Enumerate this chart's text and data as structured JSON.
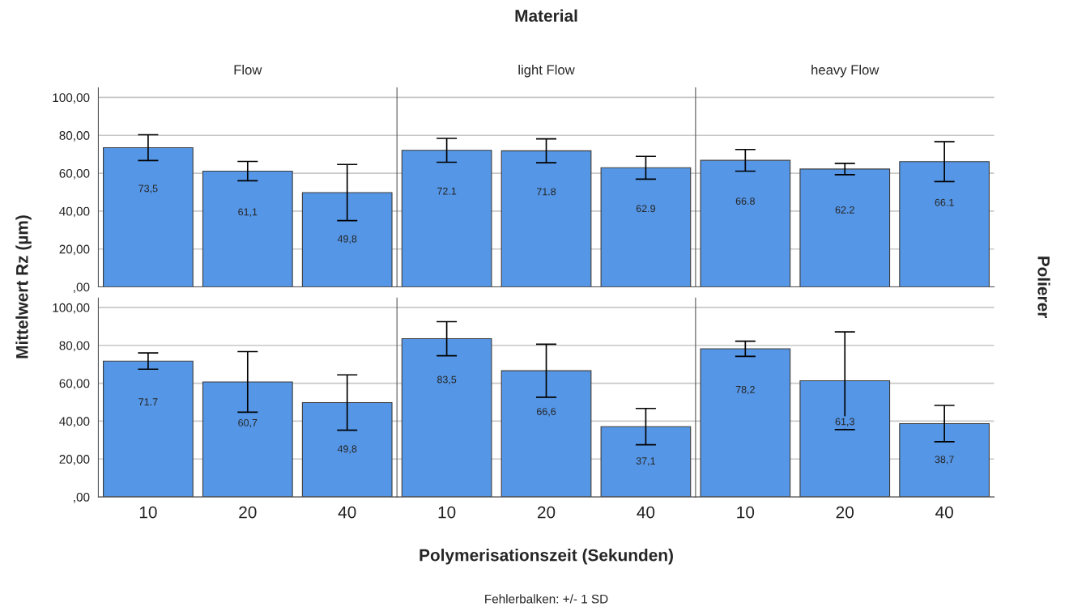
{
  "chart_data": [
    {
      "type": "bar",
      "title": "Flow",
      "ylabel": "Mittelwert Rz (µm)",
      "annotations": [
        "Material",
        "Polierer",
        "Fehlerbalken: +/- 1 SD"
      ],
      "categories": [
        "10",
        "20",
        "40"
      ],
      "color": "#5596e6",
      "values": [
        73.5,
        61.1,
        49.8
      ],
      "errors": [
        6.8,
        5.1,
        14.8
      ],
      "value_labels": [
        "73,5",
        "61,1",
        "49,8"
      ],
      "ylim": [
        0,
        105
      ],
      "yticks": [
        {
          "value": 0,
          "label": ",00"
        },
        {
          "value": 20,
          "label": "20,00"
        },
        {
          "value": 40,
          "label": "40,00"
        },
        {
          "value": 60,
          "label": "60,00"
        },
        {
          "value": 80,
          "label": "80,00"
        },
        {
          "value": 100,
          "label": "100,00"
        }
      ],
      "grid": "y",
      "tick_labels": "y"
    },
    {
      "type": "bar",
      "title": "light Flow",
      "categories": [
        "10",
        "20",
        "40"
      ],
      "color": "#5596e6",
      "values": [
        72.1,
        71.8,
        62.9
      ],
      "errors": [
        6.3,
        6.3,
        6
      ],
      "value_labels": [
        "72.1",
        "71.8",
        "62.9"
      ],
      "ylim": [
        0,
        105
      ],
      "yticks": [
        {
          "value": 0,
          "label": null
        },
        {
          "value": 20,
          "label": null
        },
        {
          "value": 40,
          "label": null
        },
        {
          "value": 60,
          "label": null
        },
        {
          "value": 80,
          "label": null
        },
        {
          "value": 100,
          "label": null
        }
      ],
      "grid": "y",
      "tick_labels": false
    },
    {
      "type": "bar",
      "title": "heavy Flow",
      "categories": [
        "10",
        "20",
        "40"
      ],
      "color": "#5596e6",
      "values": [
        66.8,
        62.2,
        66.1
      ],
      "errors": [
        5.7,
        3,
        10.5
      ],
      "value_labels": [
        "66.8",
        "62.2",
        "66.1"
      ],
      "ylim": [
        0,
        105
      ],
      "yticks": [
        {
          "value": 0,
          "label": null
        },
        {
          "value": 20,
          "label": null
        },
        {
          "value": 40,
          "label": null
        },
        {
          "value": 60,
          "label": null
        },
        {
          "value": 80,
          "label": null
        },
        {
          "value": 100,
          "label": null
        }
      ],
      "grid": "y",
      "tick_labels": false
    },
    {
      "type": "bar",
      "categories": [
        "10",
        "20",
        "40"
      ],
      "color": "#5596e6",
      "values": [
        71.7,
        60.7,
        49.8
      ],
      "errors": [
        4.3,
        16,
        14.6
      ],
      "value_labels": [
        "71.7",
        "60,7",
        "49,8"
      ],
      "ylim": [
        0,
        105
      ],
      "yticks": [
        {
          "value": 0,
          "label": ",00"
        },
        {
          "value": 20,
          "label": "20,00"
        },
        {
          "value": 40,
          "label": "40,00"
        },
        {
          "value": 60,
          "label": "60,00"
        },
        {
          "value": 80,
          "label": "80,00"
        },
        {
          "value": 100,
          "label": "100,00"
        }
      ],
      "grid": "y"
    },
    {
      "type": "bar",
      "xlabel": "Polymerisationszeit (Sekunden)",
      "categories": [
        "10",
        "20",
        "40"
      ],
      "color": "#5596e6",
      "values": [
        83.5,
        66.6,
        37.1
      ],
      "errors": [
        9,
        14,
        9.6
      ],
      "value_labels": [
        "83,5",
        "66,6",
        "37,1"
      ],
      "ylim": [
        0,
        105
      ],
      "yticks": [
        {
          "value": 0,
          "label": null
        },
        {
          "value": 20,
          "label": null
        },
        {
          "value": 40,
          "label": null
        },
        {
          "value": 60,
          "label": null
        },
        {
          "value": 80,
          "label": null
        },
        {
          "value": 100,
          "label": null
        }
      ],
      "grid": "y",
      "tick_labels": "x"
    },
    {
      "type": "bar",
      "categories": [
        "10",
        "20",
        "40"
      ],
      "color": "#5596e6",
      "values": [
        78.2,
        61.3,
        38.7
      ],
      "errors": [
        4,
        25.8,
        9.6
      ],
      "value_labels": [
        "78,2",
        "61,3",
        "38,7"
      ],
      "ylim": [
        0,
        105
      ],
      "yticks": [
        {
          "value": 0,
          "label": null
        },
        {
          "value": 20,
          "label": null
        },
        {
          "value": 40,
          "label": null
        },
        {
          "value": 60,
          "label": null
        },
        {
          "value": 80,
          "label": null
        },
        {
          "value": 100,
          "label": null
        }
      ],
      "grid": "y",
      "tick_labels": "x"
    }
  ]
}
